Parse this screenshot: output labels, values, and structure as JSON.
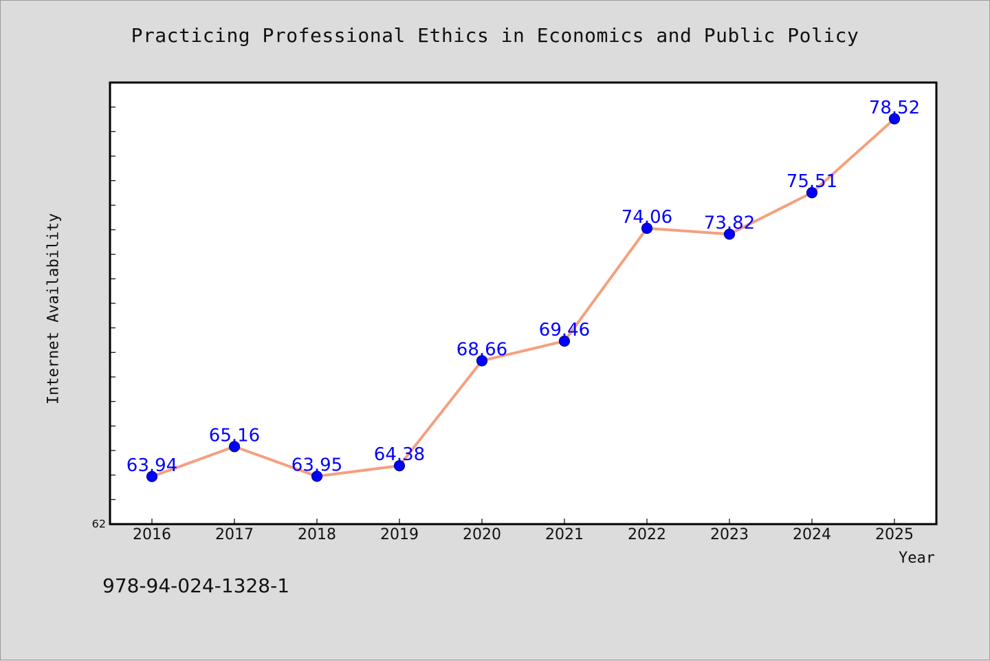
{
  "chart_data": {
    "type": "line",
    "title": "Practicing Professional Ethics in Economics and Public Policy",
    "xlabel": "Year",
    "ylabel": "Internet Availability",
    "categories": [
      "2016",
      "2017",
      "2018",
      "2019",
      "2020",
      "2021",
      "2022",
      "2023",
      "2024",
      "2025"
    ],
    "series": [
      {
        "values": [
          63.94,
          65.16,
          63.95,
          64.38,
          68.66,
          69.46,
          74.06,
          73.82,
          75.51,
          78.52
        ]
      }
    ],
    "data_labels": [
      "63.94",
      "65.16",
      "63.95",
      "64.38",
      "68.66",
      "69.46",
      "74.06",
      "73.82",
      "75.51",
      "78.52"
    ],
    "ylim": [
      62,
      80
    ],
    "y_tick_labels": [
      "62"
    ],
    "grid": false,
    "legend": "none",
    "colors": {
      "line": "#f4a07f",
      "marker": "#0000ff",
      "label": "#0000ff",
      "axis": "#000000"
    }
  },
  "footer": {
    "isbn": "978-94-024-1328-1"
  }
}
